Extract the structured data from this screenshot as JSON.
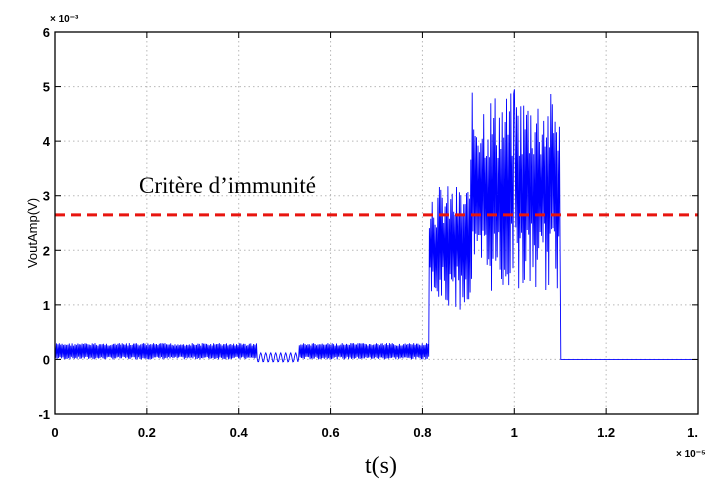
{
  "chart_data": {
    "type": "line",
    "xlabel": "t(s)",
    "ylabel": "VoutAmp(V)",
    "x_multiplier": "× 10⁻⁵",
    "y_multiplier": "× 10⁻³",
    "xlim": [
      0,
      1.4
    ],
    "ylim": [
      -1,
      6
    ],
    "x_ticks": [
      0,
      0.2,
      0.4,
      0.6,
      0.8,
      1,
      1.2
    ],
    "x_tick_labels": [
      "0",
      "0.2",
      "0.4",
      "0.6",
      "0.8",
      "1",
      "1.2"
    ],
    "x_last_tick_label": "1.",
    "y_ticks": [
      -1,
      0,
      1,
      2,
      3,
      4,
      5,
      6
    ],
    "y_tick_labels": [
      "-1",
      "0",
      "1",
      "2",
      "3",
      "4",
      "5",
      "6"
    ],
    "grid": true,
    "series": [
      {
        "color": "#0000ff",
        "segments": [
          {
            "x_start": 0,
            "x_end": 0.44,
            "low": 0.0,
            "high": 0.3,
            "behavior": "oscillation"
          },
          {
            "x_start": 0.44,
            "x_end": 0.53,
            "low": -0.05,
            "high": 0.12,
            "behavior": "quiet"
          },
          {
            "x_start": 0.53,
            "x_end": 0.815,
            "low": 0.0,
            "high": 0.3,
            "behavior": "oscillation"
          },
          {
            "x_start": 0.815,
            "x_end": 0.905,
            "low": 0.9,
            "high": 3.2,
            "behavior": "noisy burst"
          },
          {
            "x_start": 0.905,
            "x_end": 1.1,
            "low": 1.2,
            "high": 4.9,
            "behavior": "noisy burst"
          },
          {
            "x_start": 1.1,
            "x_end": 1.4,
            "low": 0.0,
            "high": 0.0,
            "behavior": "flat"
          }
        ],
        "peak": {
          "x": 1.0,
          "y": 4.95
        }
      }
    ],
    "threshold": {
      "y": 2.65,
      "color": "#e8150f",
      "style": "dashed"
    },
    "annotation": "Critère d’immunité"
  }
}
